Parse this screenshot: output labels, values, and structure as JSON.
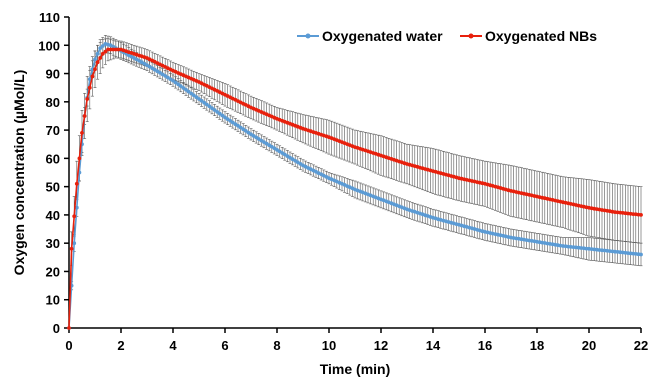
{
  "chart_data": {
    "type": "line",
    "title": "",
    "xlabel": "Time (min)",
    "ylabel": "Oxygen concentration (µMol/L)",
    "xlim": [
      0,
      22
    ],
    "ylim": [
      0,
      110
    ],
    "x_ticks": [
      0,
      2,
      4,
      6,
      8,
      10,
      12,
      14,
      16,
      18,
      20,
      22
    ],
    "y_ticks": [
      0,
      10,
      20,
      30,
      40,
      50,
      60,
      70,
      80,
      90,
      100,
      110
    ],
    "x_tick_labels": [
      "0",
      "2",
      "4",
      "6",
      "8",
      "10",
      "12",
      "14",
      "16",
      "18",
      "20",
      "22"
    ],
    "y_tick_labels": [
      "0",
      "10",
      "20",
      "30",
      "40",
      "50",
      "60",
      "70",
      "80",
      "90",
      "100",
      "110"
    ],
    "grid": false,
    "legend_position": "top-right",
    "series": [
      {
        "name": "Oxygenated water",
        "color": "#5b9bd5",
        "marker": "circle",
        "x": [
          0,
          0.2,
          0.4,
          0.6,
          0.8,
          1.0,
          1.2,
          1.4,
          1.6,
          2,
          3,
          4,
          5,
          6,
          7,
          8,
          9,
          10,
          11,
          12,
          13,
          14,
          15,
          16,
          17,
          18,
          19,
          20,
          21,
          22
        ],
        "y": [
          0,
          30,
          55,
          75,
          88,
          95,
          99,
          100.5,
          100,
          98,
          93,
          87.5,
          81,
          74.5,
          68.5,
          63,
          57.5,
          53,
          49,
          45.5,
          42,
          39,
          36.5,
          34,
          32,
          30.5,
          29,
          28,
          27,
          26
        ],
        "error": [
          0,
          3,
          3,
          3,
          3,
          3,
          3,
          3,
          3,
          3,
          2,
          2,
          2,
          2,
          2,
          2,
          2,
          2,
          3,
          3,
          3,
          3,
          3,
          3,
          3,
          3,
          3,
          4,
          4,
          4
        ]
      },
      {
        "name": "Oxygenated NBs",
        "color": "#e8200c",
        "marker": "circle",
        "x": [
          0,
          0.1,
          0.3,
          0.5,
          0.7,
          0.9,
          1.1,
          1.3,
          1.5,
          1.8,
          2,
          3,
          4,
          5,
          6,
          7,
          8,
          9,
          10,
          11,
          12,
          13,
          14,
          15,
          16,
          17,
          18,
          19,
          20,
          21,
          22
        ],
        "y": [
          0,
          28,
          51,
          69,
          81,
          89,
          94,
          97,
          98.5,
          98.5,
          98.5,
          95.5,
          91,
          87,
          82.5,
          78,
          74,
          70.5,
          67.5,
          64,
          61,
          58,
          55.5,
          53,
          51,
          48.5,
          46.5,
          44.5,
          42.5,
          41,
          40
        ],
        "error": [
          0,
          6,
          8,
          8,
          8,
          7,
          6,
          5,
          4,
          3,
          3,
          3,
          3,
          3,
          4,
          4,
          4,
          5,
          6,
          6,
          7,
          7,
          8,
          8,
          8,
          9,
          9,
          9,
          10,
          10,
          10
        ]
      }
    ]
  }
}
